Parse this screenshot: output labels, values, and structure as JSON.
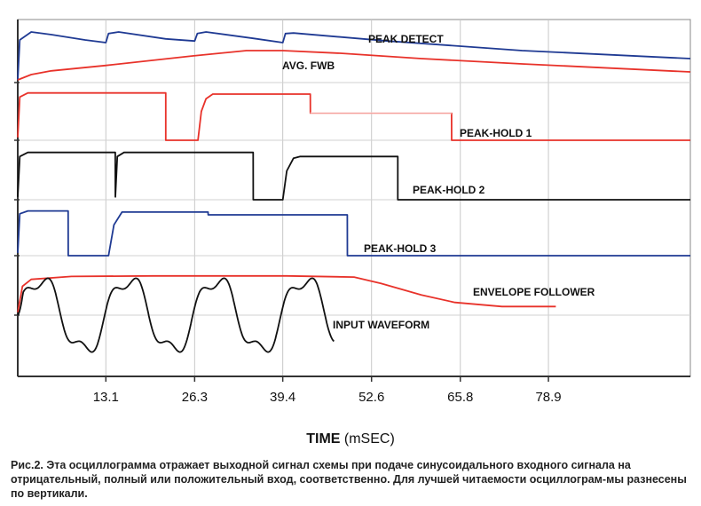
{
  "chart_data": {
    "type": "line",
    "xlabel_bold": "TIME",
    "xlabel_unit": "(mSEC)",
    "x_ticks": [
      "13.1",
      "26.3",
      "39.4",
      "52.6",
      "65.8",
      "78.9"
    ],
    "xlim": [
      0,
      100
    ],
    "grid": true,
    "traces": [
      {
        "name": "PEAK DETECT",
        "color": "#1f3a93",
        "points": [
          [
            0,
            0.05
          ],
          [
            0.3,
            0.8
          ],
          [
            2,
            0.95
          ],
          [
            5,
            0.9
          ],
          [
            10,
            0.8
          ],
          [
            13.1,
            0.75
          ],
          [
            13.5,
            0.92
          ],
          [
            15,
            0.95
          ],
          [
            22,
            0.82
          ],
          [
            26.3,
            0.78
          ],
          [
            26.7,
            0.92
          ],
          [
            28,
            0.95
          ],
          [
            35,
            0.83
          ],
          [
            39.4,
            0.75
          ],
          [
            39.8,
            0.92
          ],
          [
            41,
            0.93
          ],
          [
            55,
            0.78
          ],
          [
            75,
            0.6
          ],
          [
            100,
            0.45
          ]
        ]
      },
      {
        "name": "AVG. FWB",
        "color": "#e8322a",
        "points": [
          [
            0,
            0.05
          ],
          [
            2,
            0.15
          ],
          [
            5,
            0.22
          ],
          [
            13,
            0.32
          ],
          [
            26,
            0.5
          ],
          [
            34,
            0.6
          ],
          [
            39.4,
            0.6
          ],
          [
            48,
            0.55
          ],
          [
            60,
            0.45
          ],
          [
            75,
            0.35
          ],
          [
            100,
            0.2
          ]
        ]
      },
      {
        "name": "PEAK-HOLD 1",
        "color": "#e8322a",
        "points": [
          [
            0,
            0.05
          ],
          [
            0.3,
            0.75
          ],
          [
            1.5,
            0.82
          ],
          [
            22,
            0.82
          ],
          [
            22.01,
            0
          ],
          [
            26.8,
            0
          ],
          [
            27.3,
            0.5
          ],
          [
            28,
            0.72
          ],
          [
            29,
            0.8
          ],
          [
            43.5,
            0.8
          ],
          [
            43.51,
            0.47
          ],
          [
            64.5,
            0.47
          ],
          [
            64.51,
            0
          ],
          [
            100,
            0
          ]
        ],
        "faded": [
          43.5,
          64.5
        ]
      },
      {
        "name": "PEAK-HOLD 2",
        "color": "#111111",
        "points": [
          [
            0,
            0.05
          ],
          [
            0.3,
            0.75
          ],
          [
            1.5,
            0.82
          ],
          [
            14.5,
            0.82
          ],
          [
            14.51,
            0.05
          ],
          [
            14.8,
            0.75
          ],
          [
            15.8,
            0.82
          ],
          [
            35,
            0.82
          ],
          [
            35.01,
            0
          ],
          [
            39.4,
            0
          ],
          [
            40,
            0.5
          ],
          [
            41,
            0.72
          ],
          [
            42,
            0.75
          ],
          [
            56.5,
            0.75
          ],
          [
            56.51,
            0
          ],
          [
            100,
            0
          ]
        ]
      },
      {
        "name": "PEAK-HOLD 3",
        "color": "#1f3a93",
        "points": [
          [
            0,
            0.05
          ],
          [
            0.3,
            0.75
          ],
          [
            1.5,
            0.8
          ],
          [
            7.5,
            0.8
          ],
          [
            7.51,
            0
          ],
          [
            13.5,
            0
          ],
          [
            14.3,
            0.55
          ],
          [
            15.5,
            0.78
          ],
          [
            28.3,
            0.78
          ],
          [
            28.31,
            0.73
          ],
          [
            49,
            0.73
          ],
          [
            49.01,
            0
          ],
          [
            100,
            0
          ]
        ]
      },
      {
        "name": "ENVELOPE FOLLOWER",
        "color": "#e8322a",
        "points": [
          [
            0,
            0.05
          ],
          [
            0.7,
            0.5
          ],
          [
            2,
            0.62
          ],
          [
            8,
            0.67
          ],
          [
            20,
            0.68
          ],
          [
            40,
            0.68
          ],
          [
            50,
            0.66
          ],
          [
            54,
            0.55
          ],
          [
            60,
            0.35
          ],
          [
            65,
            0.22
          ],
          [
            72,
            0.15
          ],
          [
            80,
            0.15
          ]
        ]
      },
      {
        "name": "INPUT WAVEFORM",
        "color": "#111111",
        "sine": {
          "start": 0,
          "end": 47,
          "period": 13.1,
          "amplitude": 0.78,
          "harmonic": 0.25
        }
      }
    ]
  },
  "caption": "Рис.2. Эта осциллограмма отражает выходной сигнал схемы при подаче синусоидального входного сигнала на отрицательный, полный или положительный вход, соответственно. Для лучшей читаемости осциллограм-мы разнесены по вертикали."
}
